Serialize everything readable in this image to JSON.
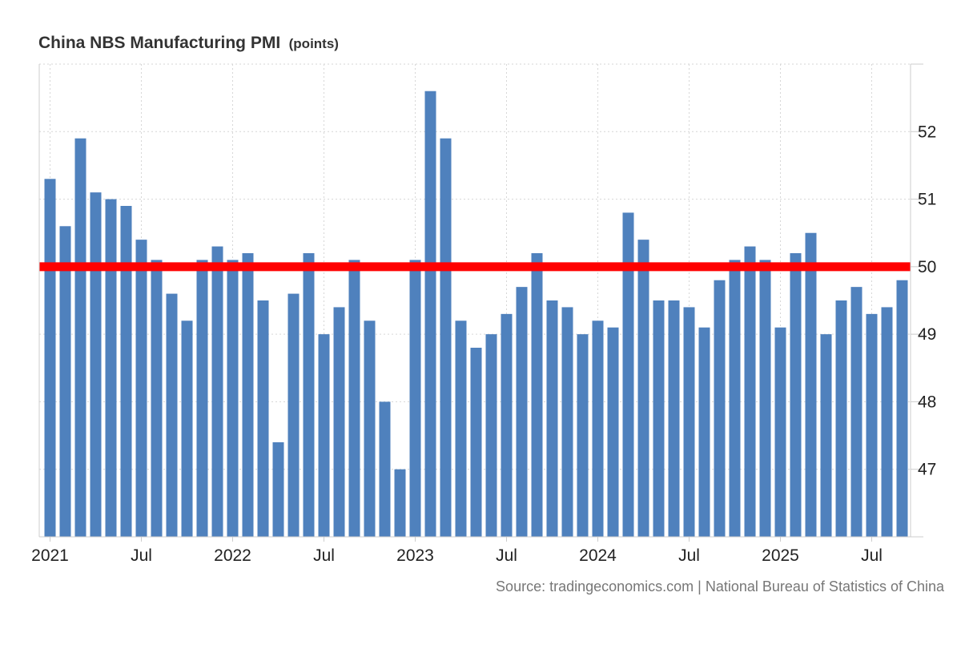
{
  "chart_data": {
    "type": "bar",
    "title": "China NBS Manufacturing PMI",
    "unit": "(points)",
    "source": "Source: tradingeconomics.com | National Bureau of Statistics of China",
    "colors": {
      "bar": "#4f81bd",
      "reference_line": "#ff0000",
      "grid": "#d6d6d6"
    },
    "ylim": [
      46,
      53
    ],
    "y_ticks": [
      "47",
      "48",
      "49",
      "50",
      "51",
      "52"
    ],
    "reference_value": 50,
    "x_tick_labels": [
      "2021",
      "Jul",
      "2022",
      "Jul",
      "2023",
      "Jul",
      "2024",
      "Jul",
      "2025",
      "Jul"
    ],
    "categories": [
      "2021-01",
      "2021-02",
      "2021-03",
      "2021-04",
      "2021-05",
      "2021-06",
      "2021-07",
      "2021-08",
      "2021-09",
      "2021-10",
      "2021-11",
      "2021-12",
      "2022-01",
      "2022-02",
      "2022-03",
      "2022-04",
      "2022-05",
      "2022-06",
      "2022-07",
      "2022-08",
      "2022-09",
      "2022-10",
      "2022-11",
      "2022-12",
      "2023-01",
      "2023-02",
      "2023-03",
      "2023-04",
      "2023-05",
      "2023-06",
      "2023-07",
      "2023-08",
      "2023-09",
      "2023-10",
      "2023-11",
      "2023-12",
      "2024-01",
      "2024-02",
      "2024-03",
      "2024-04",
      "2024-05",
      "2024-06",
      "2024-07",
      "2024-08",
      "2024-09",
      "2024-10",
      "2024-11",
      "2024-12",
      "2025-01",
      "2025-02",
      "2025-03",
      "2025-04",
      "2025-05",
      "2025-06",
      "2025-07",
      "2025-08",
      "2025-09"
    ],
    "values": [
      51.3,
      50.6,
      51.9,
      51.1,
      51.0,
      50.9,
      50.4,
      50.1,
      49.6,
      49.2,
      50.1,
      50.3,
      50.1,
      50.2,
      49.5,
      47.4,
      49.6,
      50.2,
      49.0,
      49.4,
      50.1,
      49.2,
      48.0,
      47.0,
      50.1,
      52.6,
      51.9,
      49.2,
      48.8,
      49.0,
      49.3,
      49.7,
      50.2,
      49.5,
      49.4,
      49.0,
      49.2,
      49.1,
      50.8,
      50.4,
      49.5,
      49.5,
      49.4,
      49.1,
      49.8,
      50.1,
      50.3,
      50.1,
      49.1,
      50.2,
      50.5,
      49.0,
      49.5,
      49.7,
      49.3,
      49.4,
      49.8
    ]
  }
}
